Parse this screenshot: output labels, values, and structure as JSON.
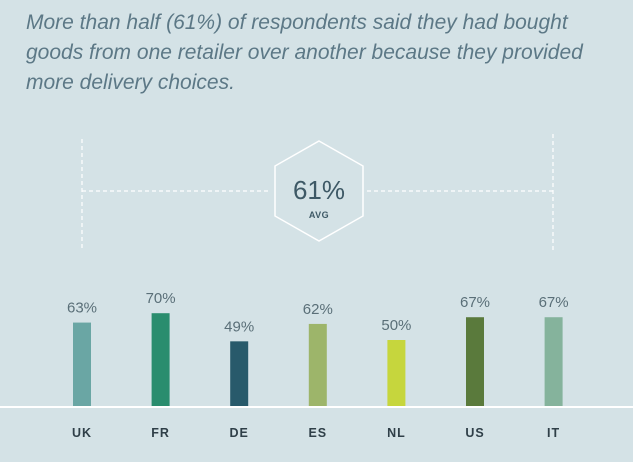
{
  "headline": "More than half (61%) of respondents said they had bought goods from one retailer over another because they provided more delivery choices.",
  "average": {
    "value": 61,
    "value_text": "61%",
    "label": "AVG"
  },
  "colors": {
    "background": "#d4e2e6",
    "baseline": "#ffffff",
    "reference_lines": "#ffffff"
  },
  "chart_data": {
    "type": "bar",
    "title": "",
    "xlabel": "",
    "ylabel": "",
    "ylim": [
      0,
      100
    ],
    "grid": false,
    "categories": [
      "UK",
      "FR",
      "DE",
      "ES",
      "NL",
      "US",
      "IT"
    ],
    "values": [
      63,
      70,
      49,
      62,
      50,
      67,
      67
    ],
    "value_labels": [
      "63%",
      "70%",
      "49%",
      "62%",
      "50%",
      "67%",
      "67%"
    ],
    "bar_colors": [
      "#6aa6a4",
      "#2a8d6e",
      "#285a6b",
      "#9db56a",
      "#c6d63d",
      "#5a7a3c",
      "#85b39c"
    ]
  }
}
